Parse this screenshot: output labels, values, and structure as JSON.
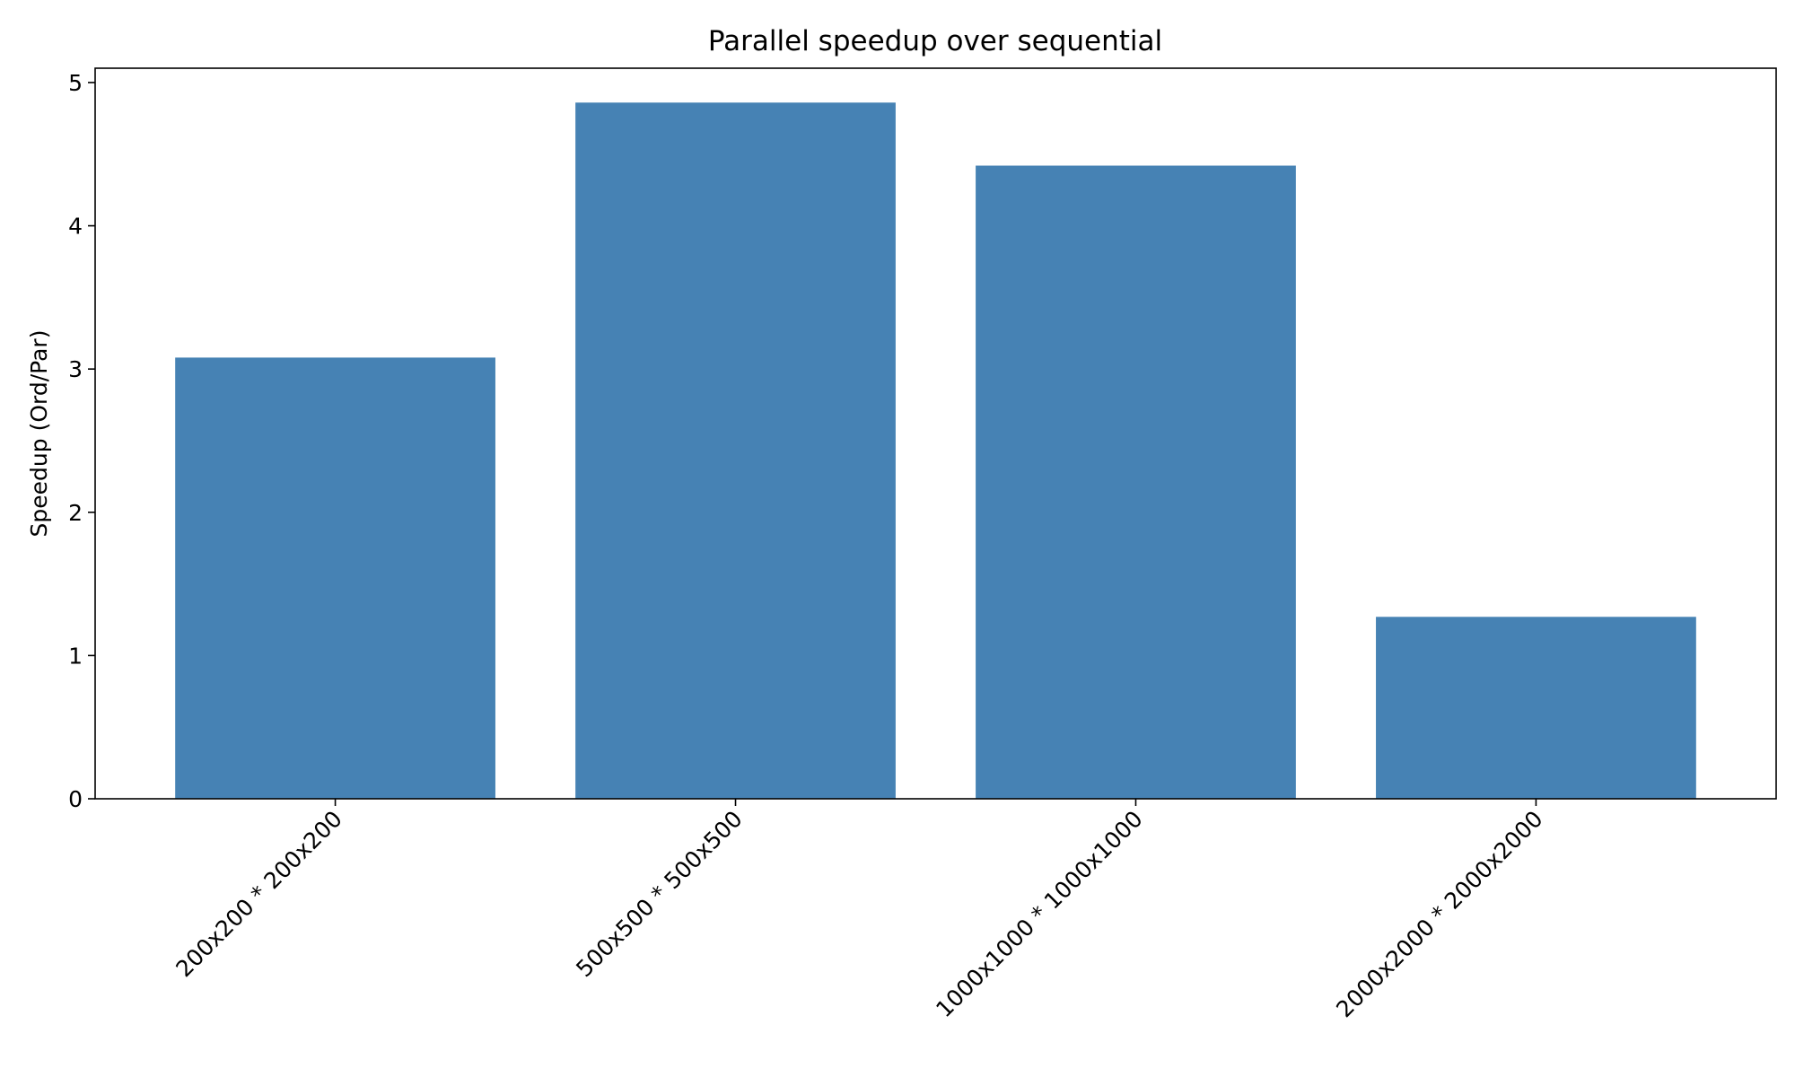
{
  "chart_data": {
    "type": "bar",
    "title": "Parallel speedup over sequential",
    "xlabel": "",
    "ylabel": "Speedup (Ord/Par)",
    "categories": [
      "200x200 * 200x200",
      "500x500 * 500x500",
      "1000x1000 * 1000x1000",
      "2000x2000 * 2000x2000"
    ],
    "values": [
      3.08,
      4.86,
      4.42,
      1.27
    ],
    "ylim": [
      0,
      5.1
    ],
    "yticks": [
      0,
      1,
      2,
      3,
      4,
      5
    ],
    "bar_color": "#4682b4",
    "grid": false,
    "legend": false
  }
}
